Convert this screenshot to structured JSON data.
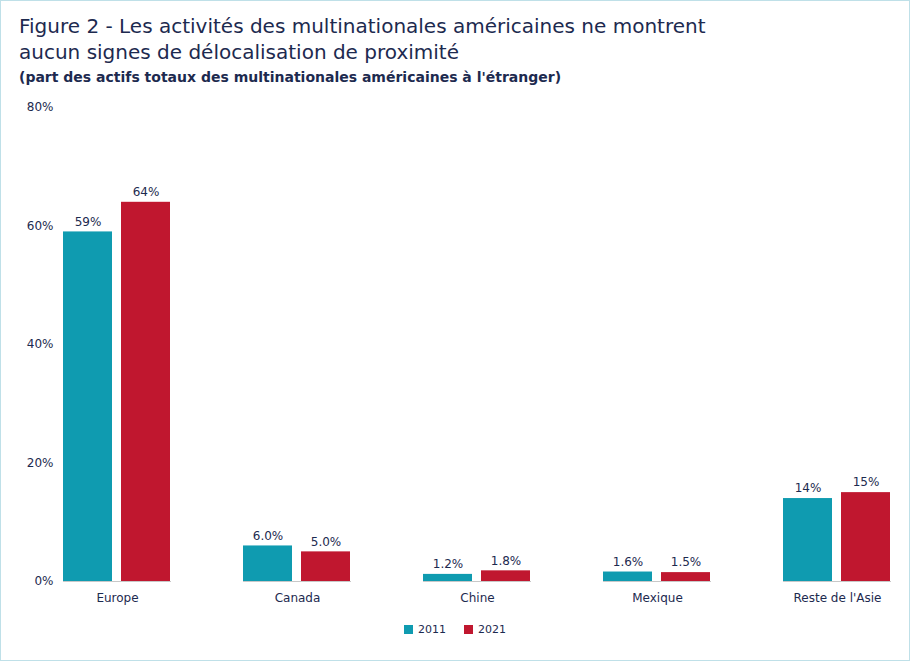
{
  "chart_data": {
    "type": "bar",
    "title": "Figure 2 - Les activités des multinationales américaines ne montrent aucun signes de délocalisation de proximité",
    "subtitle": "(part des actifs totaux des multinationales américaines à l'étranger)",
    "categories": [
      "Europe",
      "Canada",
      "Chine",
      "Mexique",
      "Reste de l'Asie"
    ],
    "series": [
      {
        "name": "2011",
        "color": "#0f9bb0",
        "values": [
          59,
          6.0,
          1.2,
          1.6,
          14
        ],
        "value_labels": [
          "59%",
          "6.0%",
          "1.2%",
          "1.6%",
          "14%"
        ]
      },
      {
        "name": "2021",
        "color": "#c0172f",
        "values": [
          64,
          5.0,
          1.8,
          1.5,
          15
        ],
        "value_labels": [
          "64%",
          "5.0%",
          "1.8%",
          "1.5%",
          "15%"
        ]
      }
    ],
    "ylim": [
      0,
      80
    ],
    "yticks": [
      {
        "value": 0,
        "label": "0%"
      },
      {
        "value": 20,
        "label": "20%"
      },
      {
        "value": 40,
        "label": "40%"
      },
      {
        "value": 60,
        "label": "60%"
      },
      {
        "value": 80,
        "label": "80%"
      }
    ],
    "grid": false,
    "data_labels": true,
    "legend": "bottom"
  }
}
